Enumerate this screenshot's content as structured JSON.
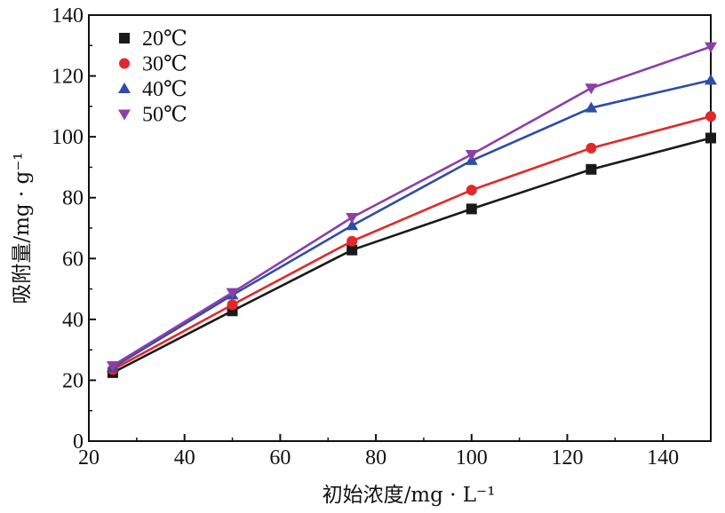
{
  "chart_data": {
    "type": "line",
    "title": "",
    "xlabel": "初始浓度/mg · L⁻¹",
    "ylabel": "吸附量/mg · g⁻¹",
    "xlim": [
      20,
      150
    ],
    "ylim": [
      0,
      140
    ],
    "xticks": [
      20,
      40,
      60,
      80,
      100,
      120,
      140
    ],
    "yticks": [
      0,
      20,
      40,
      60,
      80,
      100,
      120,
      140
    ],
    "grid": false,
    "legend_position": "top-left",
    "x": [
      25,
      50,
      75,
      100,
      125,
      150
    ],
    "series": [
      {
        "name": "20℃",
        "color": "#1a1a1a",
        "marker": "square",
        "values": [
          22.5,
          42.8,
          62.8,
          76.3,
          89.3,
          99.6
        ]
      },
      {
        "name": "30℃",
        "color": "#e02a2a",
        "marker": "circle",
        "values": [
          23.5,
          44.8,
          65.7,
          82.5,
          96.3,
          106.7
        ]
      },
      {
        "name": "40℃",
        "color": "#2d4ea6",
        "marker": "triangle-up",
        "values": [
          24.2,
          48.0,
          70.8,
          92.2,
          109.5,
          118.6
        ]
      },
      {
        "name": "50℃",
        "color": "#8c3fa8",
        "marker": "triangle-down",
        "values": [
          24.8,
          48.8,
          73.5,
          94.2,
          116.0,
          129.6
        ]
      }
    ]
  }
}
